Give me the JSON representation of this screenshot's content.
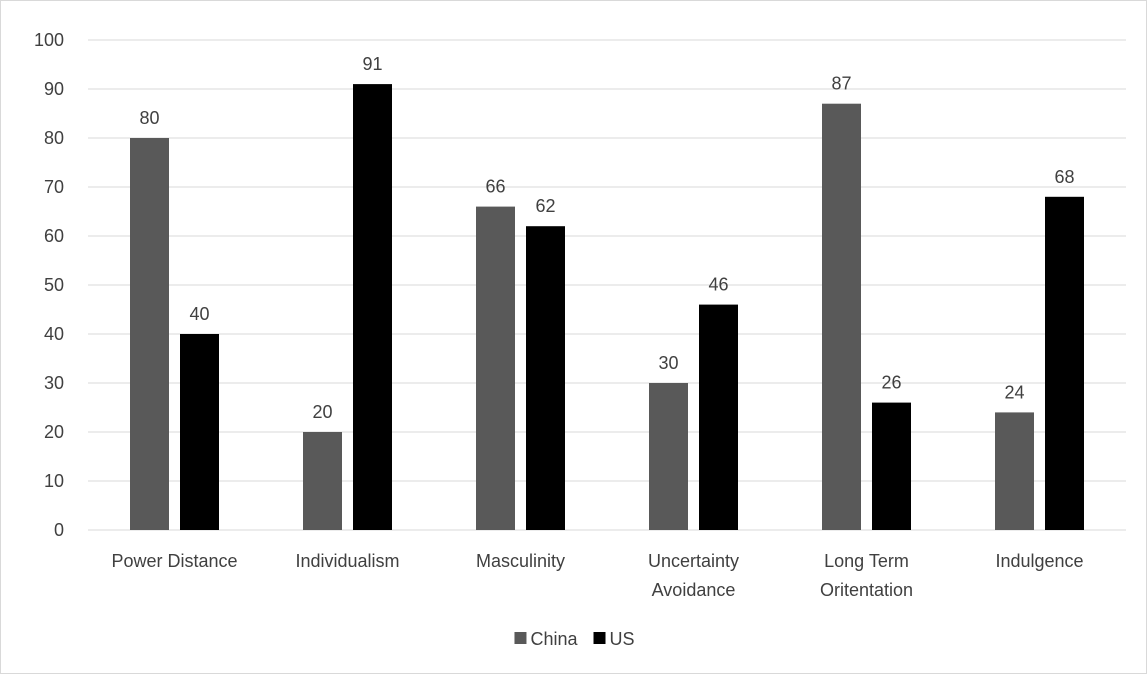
{
  "chart_data": {
    "type": "bar",
    "categories": [
      [
        "Power Distance"
      ],
      [
        "Individualism"
      ],
      [
        "Masculinity"
      ],
      [
        "Uncertainty",
        "Avoidance"
      ],
      [
        "Long Term",
        "Oritentation"
      ],
      [
        "Indulgence"
      ]
    ],
    "series": [
      {
        "name": "China",
        "color": "#595959",
        "values": [
          80,
          20,
          66,
          30,
          87,
          24
        ]
      },
      {
        "name": "US",
        "color": "#000000",
        "values": [
          40,
          91,
          62,
          46,
          26,
          68
        ]
      }
    ],
    "ylim": [
      0,
      100
    ],
    "yticks": [
      0,
      10,
      20,
      30,
      40,
      50,
      60,
      70,
      80,
      90,
      100
    ],
    "grid": true,
    "gridColor": "#d9d9d9",
    "data_labels": true,
    "legend_position": "bottom"
  }
}
